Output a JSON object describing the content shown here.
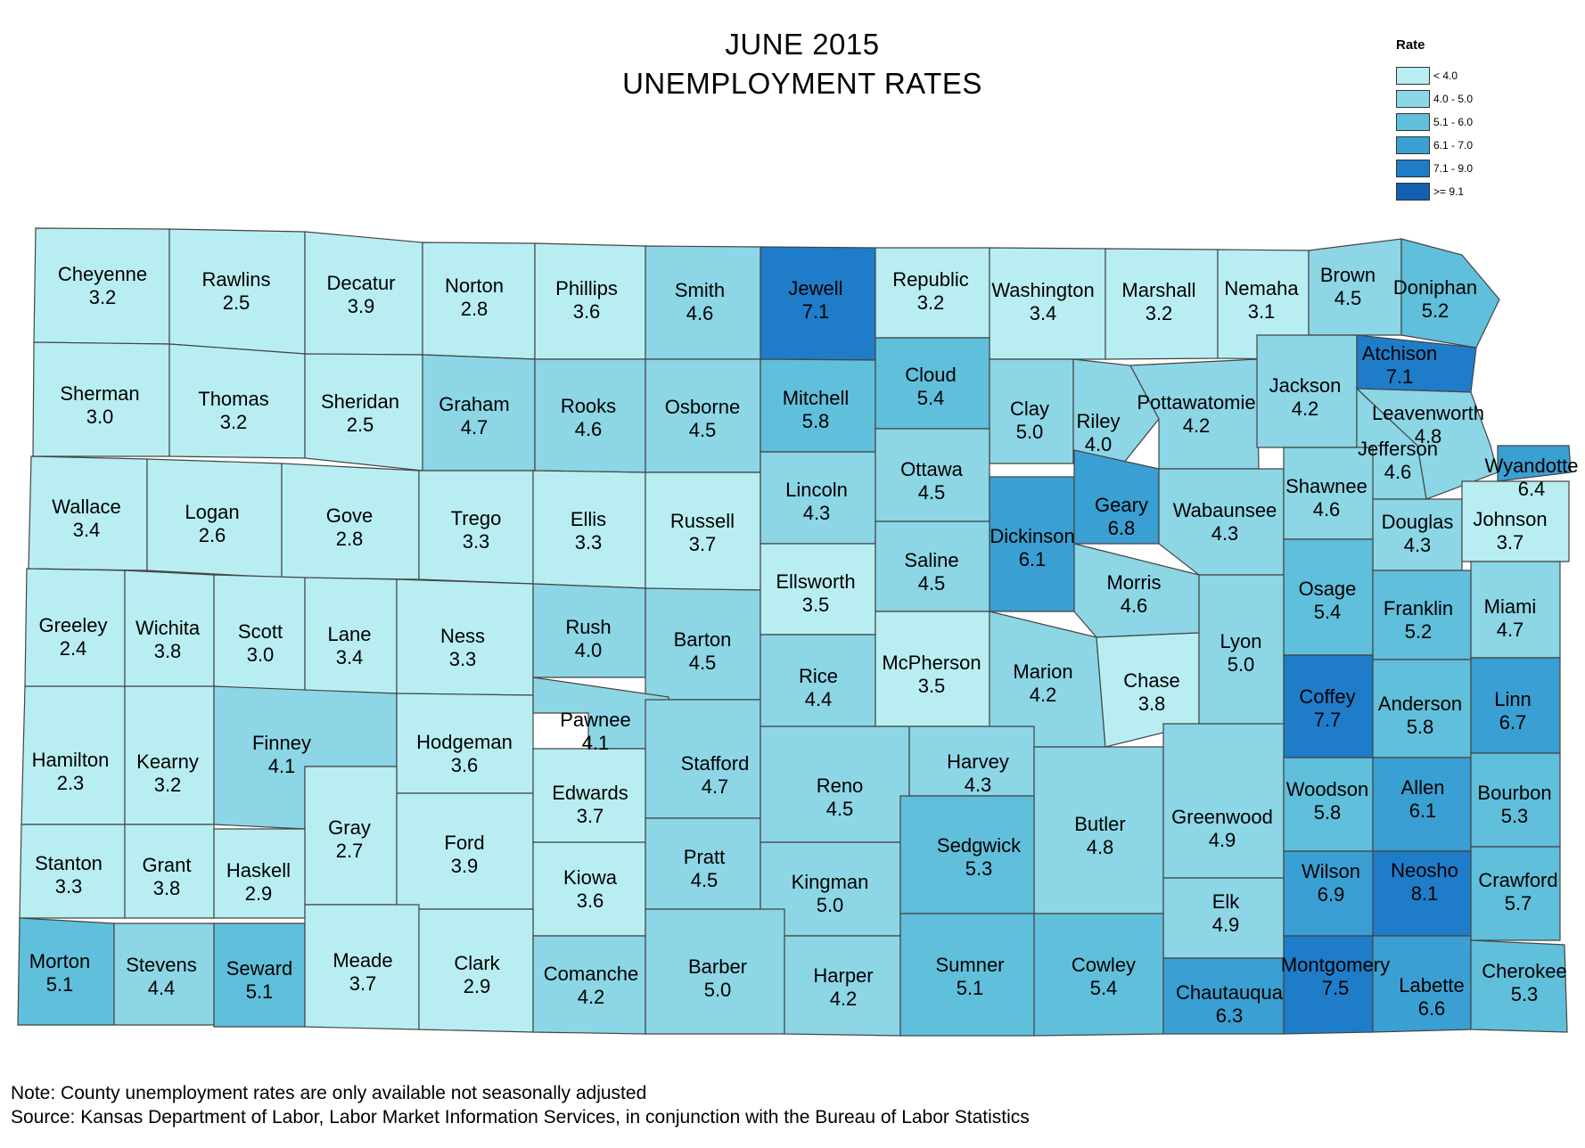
{
  "title": {
    "line1": "JUNE 2015",
    "line2": "UNEMPLOYMENT RATES"
  },
  "legend": {
    "title": "Rate",
    "classes": [
      {
        "label": "< 4.0",
        "color": "#b8eef2"
      },
      {
        "label": "4.0 - 5.0",
        "color": "#8cd6e6"
      },
      {
        "label": "5.1 - 6.0",
        "color": "#60bfdb"
      },
      {
        "label": "6.1 - 7.0",
        "color": "#3a9fd2"
      },
      {
        "label": "7.1 - 9.0",
        "color": "#1f7cc8"
      },
      {
        "label": ">= 9.1",
        "color": "#1260b0"
      }
    ]
  },
  "counties": [
    {
      "name": "Cheyenne",
      "rate": "3.2",
      "class": 0
    },
    {
      "name": "Rawlins",
      "rate": "2.5",
      "class": 0
    },
    {
      "name": "Decatur",
      "rate": "3.9",
      "class": 0
    },
    {
      "name": "Norton",
      "rate": "2.8",
      "class": 0
    },
    {
      "name": "Phillips",
      "rate": "3.6",
      "class": 0
    },
    {
      "name": "Smith",
      "rate": "4.6",
      "class": 1
    },
    {
      "name": "Jewell",
      "rate": "7.1",
      "class": 4
    },
    {
      "name": "Republic",
      "rate": "3.2",
      "class": 0
    },
    {
      "name": "Washington",
      "rate": "3.4",
      "class": 0
    },
    {
      "name": "Marshall",
      "rate": "3.2",
      "class": 0
    },
    {
      "name": "Nemaha",
      "rate": "3.1",
      "class": 0
    },
    {
      "name": "Brown",
      "rate": "4.5",
      "class": 1
    },
    {
      "name": "Doniphan",
      "rate": "5.2",
      "class": 2
    },
    {
      "name": "Sherman",
      "rate": "3.0",
      "class": 0
    },
    {
      "name": "Thomas",
      "rate": "3.2",
      "class": 0
    },
    {
      "name": "Sheridan",
      "rate": "2.5",
      "class": 0
    },
    {
      "name": "Graham",
      "rate": "4.7",
      "class": 1
    },
    {
      "name": "Rooks",
      "rate": "4.6",
      "class": 1
    },
    {
      "name": "Osborne",
      "rate": "4.5",
      "class": 1
    },
    {
      "name": "Mitchell",
      "rate": "5.8",
      "class": 2
    },
    {
      "name": "Cloud",
      "rate": "5.4",
      "class": 2
    },
    {
      "name": "Clay",
      "rate": "5.0",
      "class": 1
    },
    {
      "name": "Riley",
      "rate": "4.0",
      "class": 1
    },
    {
      "name": "Pottawatomie",
      "rate": "4.2",
      "class": 1
    },
    {
      "name": "Jackson",
      "rate": "4.2",
      "class": 1
    },
    {
      "name": "Atchison",
      "rate": "7.1",
      "class": 4
    },
    {
      "name": "Leavenworth",
      "rate": "4.8",
      "class": 1
    },
    {
      "name": "Jefferson",
      "rate": "4.6",
      "class": 1
    },
    {
      "name": "Wyandotte",
      "rate": "6.4",
      "class": 3
    },
    {
      "name": "Wallace",
      "rate": "3.4",
      "class": 0
    },
    {
      "name": "Logan",
      "rate": "2.6",
      "class": 0
    },
    {
      "name": "Gove",
      "rate": "2.8",
      "class": 0
    },
    {
      "name": "Trego",
      "rate": "3.3",
      "class": 0
    },
    {
      "name": "Ellis",
      "rate": "3.3",
      "class": 0
    },
    {
      "name": "Russell",
      "rate": "3.7",
      "class": 0
    },
    {
      "name": "Lincoln",
      "rate": "4.3",
      "class": 1
    },
    {
      "name": "Ottawa",
      "rate": "4.5",
      "class": 1
    },
    {
      "name": "Dickinson",
      "rate": "6.1",
      "class": 3
    },
    {
      "name": "Geary",
      "rate": "6.8",
      "class": 3
    },
    {
      "name": "Wabaunsee",
      "rate": "4.3",
      "class": 1
    },
    {
      "name": "Shawnee",
      "rate": "4.6",
      "class": 1
    },
    {
      "name": "Douglas",
      "rate": "4.3",
      "class": 1
    },
    {
      "name": "Johnson",
      "rate": "3.7",
      "class": 0
    },
    {
      "name": "Greeley",
      "rate": "2.4",
      "class": 0
    },
    {
      "name": "Wichita",
      "rate": "3.8",
      "class": 0
    },
    {
      "name": "Scott",
      "rate": "3.0",
      "class": 0
    },
    {
      "name": "Lane",
      "rate": "3.4",
      "class": 0
    },
    {
      "name": "Ness",
      "rate": "3.3",
      "class": 0
    },
    {
      "name": "Rush",
      "rate": "4.0",
      "class": 1
    },
    {
      "name": "Barton",
      "rate": "4.5",
      "class": 1
    },
    {
      "name": "Ellsworth",
      "rate": "3.5",
      "class": 0
    },
    {
      "name": "Saline",
      "rate": "4.5",
      "class": 1
    },
    {
      "name": "Morris",
      "rate": "4.6",
      "class": 1
    },
    {
      "name": "Osage",
      "rate": "5.4",
      "class": 2
    },
    {
      "name": "Franklin",
      "rate": "5.2",
      "class": 2
    },
    {
      "name": "Miami",
      "rate": "4.7",
      "class": 1
    },
    {
      "name": "Hamilton",
      "rate": "2.3",
      "class": 0
    },
    {
      "name": "Kearny",
      "rate": "3.2",
      "class": 0
    },
    {
      "name": "Finney",
      "rate": "4.1",
      "class": 1
    },
    {
      "name": "Hodgeman",
      "rate": "3.6",
      "class": 0
    },
    {
      "name": "Pawnee",
      "rate": "4.1",
      "class": 1
    },
    {
      "name": "Stafford",
      "rate": "4.7",
      "class": 1
    },
    {
      "name": "Rice",
      "rate": "4.4",
      "class": 1
    },
    {
      "name": "McPherson",
      "rate": "3.5",
      "class": 0
    },
    {
      "name": "Marion",
      "rate": "4.2",
      "class": 1
    },
    {
      "name": "Chase",
      "rate": "3.8",
      "class": 0
    },
    {
      "name": "Lyon",
      "rate": "5.0",
      "class": 1
    },
    {
      "name": "Coffey",
      "rate": "7.7",
      "class": 4
    },
    {
      "name": "Anderson",
      "rate": "5.8",
      "class": 2
    },
    {
      "name": "Linn",
      "rate": "6.7",
      "class": 3
    },
    {
      "name": "Gray",
      "rate": "2.7",
      "class": 0
    },
    {
      "name": "Ford",
      "rate": "3.9",
      "class": 0
    },
    {
      "name": "Edwards",
      "rate": "3.7",
      "class": 0
    },
    {
      "name": "Kiowa",
      "rate": "3.6",
      "class": 0
    },
    {
      "name": "Pratt",
      "rate": "4.5",
      "class": 1
    },
    {
      "name": "Reno",
      "rate": "4.5",
      "class": 1
    },
    {
      "name": "Harvey",
      "rate": "4.3",
      "class": 1
    },
    {
      "name": "Butler",
      "rate": "4.8",
      "class": 1
    },
    {
      "name": "Greenwood",
      "rate": "4.9",
      "class": 1
    },
    {
      "name": "Woodson",
      "rate": "5.8",
      "class": 2
    },
    {
      "name": "Allen",
      "rate": "6.1",
      "class": 3
    },
    {
      "name": "Bourbon",
      "rate": "5.3",
      "class": 2
    },
    {
      "name": "Stanton",
      "rate": "3.3",
      "class": 0
    },
    {
      "name": "Grant",
      "rate": "3.8",
      "class": 0
    },
    {
      "name": "Haskell",
      "rate": "2.9",
      "class": 0
    },
    {
      "name": "Kingman",
      "rate": "5.0",
      "class": 1
    },
    {
      "name": "Sedgwick",
      "rate": "5.3",
      "class": 2
    },
    {
      "name": "Elk",
      "rate": "4.9",
      "class": 1
    },
    {
      "name": "Wilson",
      "rate": "6.9",
      "class": 3
    },
    {
      "name": "Neosho",
      "rate": "8.1",
      "class": 4
    },
    {
      "name": "Crawford",
      "rate": "5.7",
      "class": 2
    },
    {
      "name": "Morton",
      "rate": "5.1",
      "class": 2
    },
    {
      "name": "Stevens",
      "rate": "4.4",
      "class": 1
    },
    {
      "name": "Seward",
      "rate": "5.1",
      "class": 2
    },
    {
      "name": "Meade",
      "rate": "3.7",
      "class": 0
    },
    {
      "name": "Clark",
      "rate": "2.9",
      "class": 0
    },
    {
      "name": "Comanche",
      "rate": "4.2",
      "class": 1
    },
    {
      "name": "Barber",
      "rate": "5.0",
      "class": 1
    },
    {
      "name": "Harper",
      "rate": "4.2",
      "class": 1
    },
    {
      "name": "Sumner",
      "rate": "5.1",
      "class": 2
    },
    {
      "name": "Cowley",
      "rate": "5.4",
      "class": 2
    },
    {
      "name": "Chautauqua",
      "rate": "6.3",
      "class": 3
    },
    {
      "name": "Montgomery",
      "rate": "7.5",
      "class": 4
    },
    {
      "name": "Labette",
      "rate": "6.6",
      "class": 3
    },
    {
      "name": "Cherokee",
      "rate": "5.3",
      "class": 2
    }
  ],
  "notes": {
    "line1": "Note: County unemployment rates are only available not seasonally adjusted",
    "line2": "Source: Kansas Department of Labor, Labor Market Information Services, in conjunction with the Bureau of Labor Statistics"
  }
}
